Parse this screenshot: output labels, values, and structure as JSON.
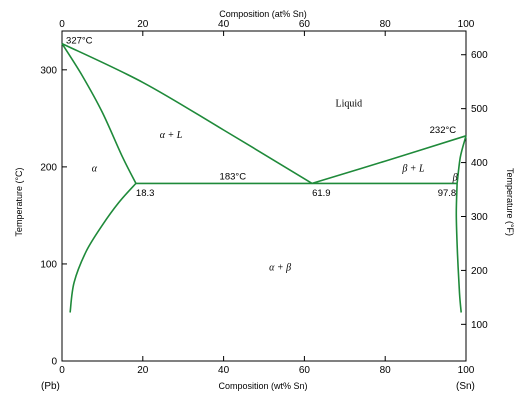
{
  "chart_data": {
    "type": "line",
    "xlabel_bottom": "Composition (wt% Sn)",
    "xlabel_top": "Composition (at% Sn)",
    "ylabel_left": "Temperature (°C)",
    "ylabel_right": "Temperature (°F)",
    "xlim": [
      0,
      100
    ],
    "ylim": [
      0,
      340
    ],
    "x_ticks": [
      0,
      20,
      40,
      60,
      80,
      100
    ],
    "x_tick_labels": [
      "0",
      "20",
      "40",
      "60",
      "80",
      "100"
    ],
    "x_end_labels": {
      "left": "(Pb)",
      "right": "(Sn)"
    },
    "top_ticks": [
      0,
      20,
      40,
      60,
      80,
      100
    ],
    "top_tick_labels": [
      "0",
      "20",
      "40",
      "60",
      "80",
      "100"
    ],
    "y_ticks": [
      0,
      100,
      200,
      300
    ],
    "y_tick_labels": [
      "0",
      "100",
      "200",
      "300"
    ],
    "right_ticks_F": [
      100,
      200,
      300,
      400,
      500,
      600
    ],
    "right_tick_labels": [
      "100",
      "200",
      "300",
      "400",
      "500",
      "600"
    ],
    "series": [
      {
        "role": "liquidus-left",
        "x": [
          0,
          20,
          40,
          61.9
        ],
        "y": [
          327,
          287,
          238,
          183
        ]
      },
      {
        "role": "solidus-left",
        "x": [
          0,
          5,
          10,
          15,
          18.3
        ],
        "y": [
          327,
          294,
          256,
          210,
          183
        ]
      },
      {
        "role": "solvus-alpha",
        "x": [
          18.3,
          14,
          10,
          6,
          3,
          2
        ],
        "y": [
          183,
          163,
          140,
          113,
          81,
          50
        ]
      },
      {
        "role": "eutectic-isotherm",
        "x": [
          18.3,
          61.9,
          97.8
        ],
        "y": [
          183,
          183,
          183
        ]
      },
      {
        "role": "liquidus-right",
        "x": [
          61.9,
          80,
          100
        ],
        "y": [
          183,
          206,
          232
        ]
      },
      {
        "role": "solidus-right",
        "x": [
          97.8,
          98.6,
          100
        ],
        "y": [
          183,
          210,
          232
        ]
      },
      {
        "role": "solvus-beta",
        "x": [
          97.8,
          97.6,
          97.9,
          98.4,
          98.8
        ],
        "y": [
          183,
          150,
          110,
          70,
          50
        ]
      }
    ],
    "region_labels": [
      {
        "text": "Liquid",
        "x": 71,
        "y": 262
      },
      {
        "text": "α + L",
        "x": 27,
        "y": 230,
        "italic": true
      },
      {
        "text": "α",
        "x": 8,
        "y": 195,
        "italic": true
      },
      {
        "text": "β + L",
        "x": 87,
        "y": 195,
        "italic": true
      },
      {
        "text": "β",
        "x": 97.3,
        "y": 186,
        "italic": true
      },
      {
        "text": "α + β",
        "x": 54,
        "y": 93,
        "italic": true
      }
    ],
    "annotations": [
      {
        "text": "327°C",
        "x": 1,
        "y": 327
      },
      {
        "text": "232°C",
        "x": 91,
        "y": 235
      },
      {
        "text": "183°C",
        "x": 39,
        "y": 187
      },
      {
        "text": "18.3",
        "x": 18.3,
        "y": 170
      },
      {
        "text": "61.9",
        "x": 61.9,
        "y": 170
      },
      {
        "text": "97.8",
        "x": 93,
        "y": 170
      }
    ],
    "line_color": "#1f8a3a",
    "grid": false
  }
}
